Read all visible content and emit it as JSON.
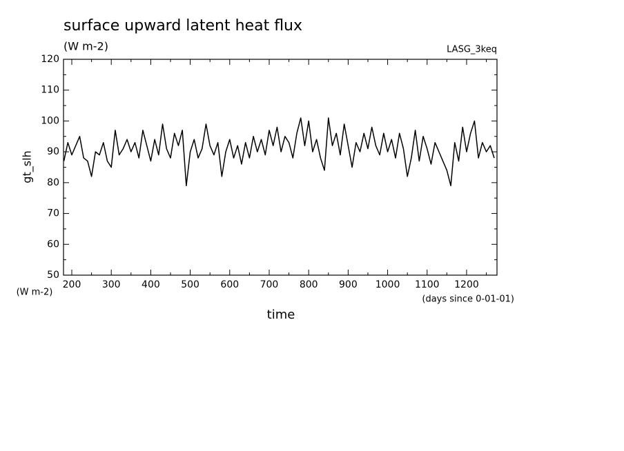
{
  "chart_data": {
    "type": "line",
    "title": "surface upward latent heat flux",
    "subtitle": "(W m-2)",
    "annotation": "LASG_3keq",
    "ylabel": "gt_slh",
    "yunit": "(W m-2)",
    "xlabel": "time",
    "xunit": "(days since 0-01-01)",
    "color": "#000000",
    "x": [
      180,
      190,
      200,
      210,
      220,
      230,
      240,
      250,
      260,
      270,
      280,
      290,
      300,
      310,
      320,
      330,
      340,
      350,
      360,
      370,
      380,
      390,
      400,
      410,
      420,
      430,
      440,
      450,
      460,
      470,
      480,
      490,
      500,
      510,
      520,
      530,
      540,
      550,
      560,
      570,
      580,
      590,
      600,
      610,
      620,
      630,
      640,
      650,
      660,
      670,
      680,
      690,
      700,
      710,
      720,
      730,
      740,
      750,
      760,
      770,
      780,
      790,
      800,
      810,
      820,
      830,
      840,
      850,
      860,
      870,
      880,
      890,
      900,
      910,
      920,
      930,
      940,
      950,
      960,
      970,
      980,
      990,
      1000,
      1010,
      1020,
      1030,
      1040,
      1050,
      1060,
      1070,
      1080,
      1090,
      1100,
      1110,
      1120,
      1130,
      1140,
      1150,
      1160,
      1170,
      1180,
      1190,
      1200,
      1210,
      1220,
      1230,
      1240,
      1250,
      1260,
      1270
    ],
    "values": [
      87,
      93,
      89,
      92,
      95,
      88,
      87,
      82,
      90,
      89,
      93,
      87,
      85,
      97,
      89,
      91,
      94,
      90,
      93,
      88,
      97,
      92,
      87,
      94,
      89,
      99,
      91,
      88,
      96,
      92,
      97,
      79,
      90,
      94,
      88,
      91,
      99,
      92,
      89,
      93,
      82,
      90,
      94,
      88,
      92,
      86,
      93,
      88,
      95,
      90,
      94,
      89,
      97,
      92,
      98,
      90,
      95,
      93,
      88,
      96,
      101,
      92,
      100,
      90,
      94,
      88,
      84,
      101,
      92,
      96,
      89,
      99,
      92,
      85,
      93,
      90,
      96,
      91,
      98,
      92,
      89,
      96,
      90,
      94,
      88,
      96,
      91,
      82,
      88,
      97,
      87,
      95,
      91,
      86,
      93,
      90,
      87,
      84,
      79,
      93,
      87,
      98,
      90,
      96,
      100,
      88,
      93,
      90,
      92,
      88
    ],
    "xlim": [
      179,
      1277
    ],
    "ylim": [
      50,
      120
    ],
    "xticks": [
      200,
      300,
      400,
      500,
      600,
      700,
      800,
      900,
      1000,
      1100,
      1200
    ],
    "yticks": [
      50,
      60,
      70,
      80,
      90,
      100,
      110,
      120
    ],
    "xminorticks": [
      250,
      350,
      450,
      550,
      650,
      750,
      850,
      950,
      1050,
      1150,
      1250
    ],
    "yminorticks": [
      55,
      65,
      75,
      85,
      95,
      105,
      115
    ]
  }
}
